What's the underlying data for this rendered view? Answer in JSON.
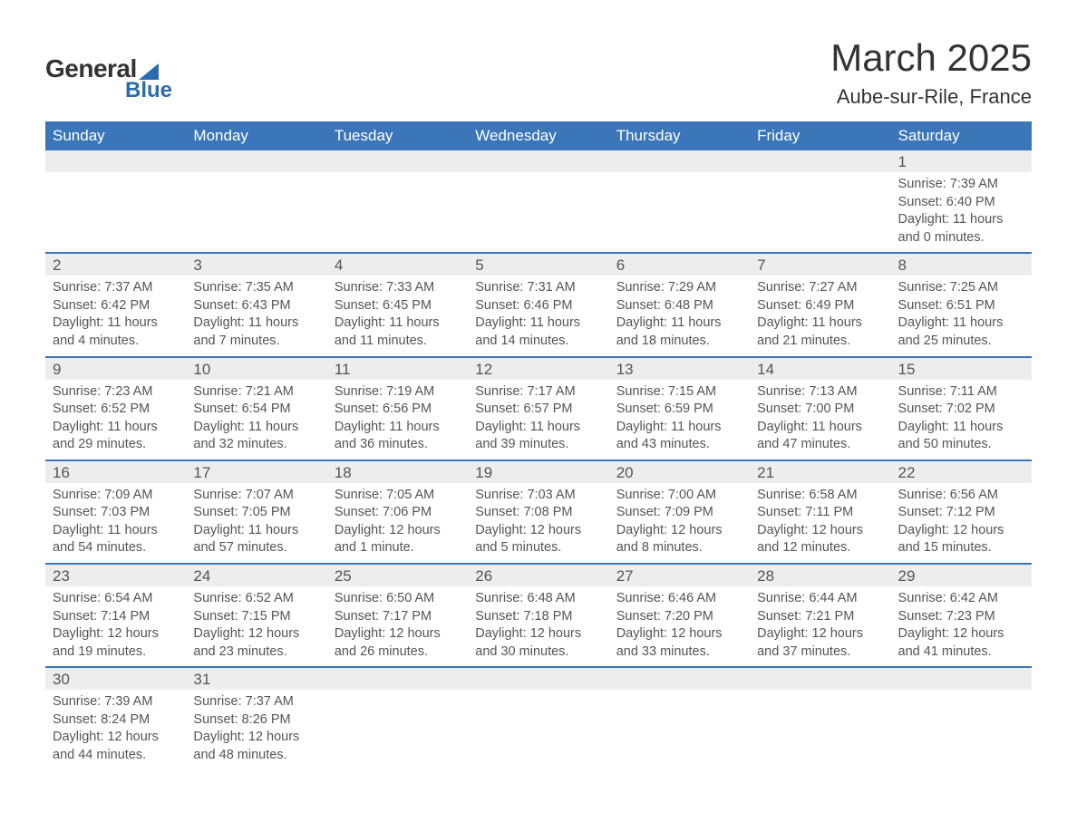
{
  "logo": {
    "general": "General",
    "blue": "Blue"
  },
  "title": "March 2025",
  "location": "Aube-sur-Rile, France",
  "colors": {
    "header_bg": "#3a76b8",
    "header_text": "#ffffff",
    "daynum_bg": "#ededed",
    "border": "#3a76b8",
    "body_text": "#555555",
    "title_text": "#333333",
    "logo_blue": "#2b6cb0"
  },
  "days_of_week": [
    "Sunday",
    "Monday",
    "Tuesday",
    "Wednesday",
    "Thursday",
    "Friday",
    "Saturday"
  ],
  "weeks": [
    [
      {
        "n": "",
        "sr": "",
        "ss": "",
        "dl": ""
      },
      {
        "n": "",
        "sr": "",
        "ss": "",
        "dl": ""
      },
      {
        "n": "",
        "sr": "",
        "ss": "",
        "dl": ""
      },
      {
        "n": "",
        "sr": "",
        "ss": "",
        "dl": ""
      },
      {
        "n": "",
        "sr": "",
        "ss": "",
        "dl": ""
      },
      {
        "n": "",
        "sr": "",
        "ss": "",
        "dl": ""
      },
      {
        "n": "1",
        "sr": "Sunrise: 7:39 AM",
        "ss": "Sunset: 6:40 PM",
        "dl": "Daylight: 11 hours and 0 minutes."
      }
    ],
    [
      {
        "n": "2",
        "sr": "Sunrise: 7:37 AM",
        "ss": "Sunset: 6:42 PM",
        "dl": "Daylight: 11 hours and 4 minutes."
      },
      {
        "n": "3",
        "sr": "Sunrise: 7:35 AM",
        "ss": "Sunset: 6:43 PM",
        "dl": "Daylight: 11 hours and 7 minutes."
      },
      {
        "n": "4",
        "sr": "Sunrise: 7:33 AM",
        "ss": "Sunset: 6:45 PM",
        "dl": "Daylight: 11 hours and 11 minutes."
      },
      {
        "n": "5",
        "sr": "Sunrise: 7:31 AM",
        "ss": "Sunset: 6:46 PM",
        "dl": "Daylight: 11 hours and 14 minutes."
      },
      {
        "n": "6",
        "sr": "Sunrise: 7:29 AM",
        "ss": "Sunset: 6:48 PM",
        "dl": "Daylight: 11 hours and 18 minutes."
      },
      {
        "n": "7",
        "sr": "Sunrise: 7:27 AM",
        "ss": "Sunset: 6:49 PM",
        "dl": "Daylight: 11 hours and 21 minutes."
      },
      {
        "n": "8",
        "sr": "Sunrise: 7:25 AM",
        "ss": "Sunset: 6:51 PM",
        "dl": "Daylight: 11 hours and 25 minutes."
      }
    ],
    [
      {
        "n": "9",
        "sr": "Sunrise: 7:23 AM",
        "ss": "Sunset: 6:52 PM",
        "dl": "Daylight: 11 hours and 29 minutes."
      },
      {
        "n": "10",
        "sr": "Sunrise: 7:21 AM",
        "ss": "Sunset: 6:54 PM",
        "dl": "Daylight: 11 hours and 32 minutes."
      },
      {
        "n": "11",
        "sr": "Sunrise: 7:19 AM",
        "ss": "Sunset: 6:56 PM",
        "dl": "Daylight: 11 hours and 36 minutes."
      },
      {
        "n": "12",
        "sr": "Sunrise: 7:17 AM",
        "ss": "Sunset: 6:57 PM",
        "dl": "Daylight: 11 hours and 39 minutes."
      },
      {
        "n": "13",
        "sr": "Sunrise: 7:15 AM",
        "ss": "Sunset: 6:59 PM",
        "dl": "Daylight: 11 hours and 43 minutes."
      },
      {
        "n": "14",
        "sr": "Sunrise: 7:13 AM",
        "ss": "Sunset: 7:00 PM",
        "dl": "Daylight: 11 hours and 47 minutes."
      },
      {
        "n": "15",
        "sr": "Sunrise: 7:11 AM",
        "ss": "Sunset: 7:02 PM",
        "dl": "Daylight: 11 hours and 50 minutes."
      }
    ],
    [
      {
        "n": "16",
        "sr": "Sunrise: 7:09 AM",
        "ss": "Sunset: 7:03 PM",
        "dl": "Daylight: 11 hours and 54 minutes."
      },
      {
        "n": "17",
        "sr": "Sunrise: 7:07 AM",
        "ss": "Sunset: 7:05 PM",
        "dl": "Daylight: 11 hours and 57 minutes."
      },
      {
        "n": "18",
        "sr": "Sunrise: 7:05 AM",
        "ss": "Sunset: 7:06 PM",
        "dl": "Daylight: 12 hours and 1 minute."
      },
      {
        "n": "19",
        "sr": "Sunrise: 7:03 AM",
        "ss": "Sunset: 7:08 PM",
        "dl": "Daylight: 12 hours and 5 minutes."
      },
      {
        "n": "20",
        "sr": "Sunrise: 7:00 AM",
        "ss": "Sunset: 7:09 PM",
        "dl": "Daylight: 12 hours and 8 minutes."
      },
      {
        "n": "21",
        "sr": "Sunrise: 6:58 AM",
        "ss": "Sunset: 7:11 PM",
        "dl": "Daylight: 12 hours and 12 minutes."
      },
      {
        "n": "22",
        "sr": "Sunrise: 6:56 AM",
        "ss": "Sunset: 7:12 PM",
        "dl": "Daylight: 12 hours and 15 minutes."
      }
    ],
    [
      {
        "n": "23",
        "sr": "Sunrise: 6:54 AM",
        "ss": "Sunset: 7:14 PM",
        "dl": "Daylight: 12 hours and 19 minutes."
      },
      {
        "n": "24",
        "sr": "Sunrise: 6:52 AM",
        "ss": "Sunset: 7:15 PM",
        "dl": "Daylight: 12 hours and 23 minutes."
      },
      {
        "n": "25",
        "sr": "Sunrise: 6:50 AM",
        "ss": "Sunset: 7:17 PM",
        "dl": "Daylight: 12 hours and 26 minutes."
      },
      {
        "n": "26",
        "sr": "Sunrise: 6:48 AM",
        "ss": "Sunset: 7:18 PM",
        "dl": "Daylight: 12 hours and 30 minutes."
      },
      {
        "n": "27",
        "sr": "Sunrise: 6:46 AM",
        "ss": "Sunset: 7:20 PM",
        "dl": "Daylight: 12 hours and 33 minutes."
      },
      {
        "n": "28",
        "sr": "Sunrise: 6:44 AM",
        "ss": "Sunset: 7:21 PM",
        "dl": "Daylight: 12 hours and 37 minutes."
      },
      {
        "n": "29",
        "sr": "Sunrise: 6:42 AM",
        "ss": "Sunset: 7:23 PM",
        "dl": "Daylight: 12 hours and 41 minutes."
      }
    ],
    [
      {
        "n": "30",
        "sr": "Sunrise: 7:39 AM",
        "ss": "Sunset: 8:24 PM",
        "dl": "Daylight: 12 hours and 44 minutes."
      },
      {
        "n": "31",
        "sr": "Sunrise: 7:37 AM",
        "ss": "Sunset: 8:26 PM",
        "dl": "Daylight: 12 hours and 48 minutes."
      },
      {
        "n": "",
        "sr": "",
        "ss": "",
        "dl": ""
      },
      {
        "n": "",
        "sr": "",
        "ss": "",
        "dl": ""
      },
      {
        "n": "",
        "sr": "",
        "ss": "",
        "dl": ""
      },
      {
        "n": "",
        "sr": "",
        "ss": "",
        "dl": ""
      },
      {
        "n": "",
        "sr": "",
        "ss": "",
        "dl": ""
      }
    ]
  ]
}
